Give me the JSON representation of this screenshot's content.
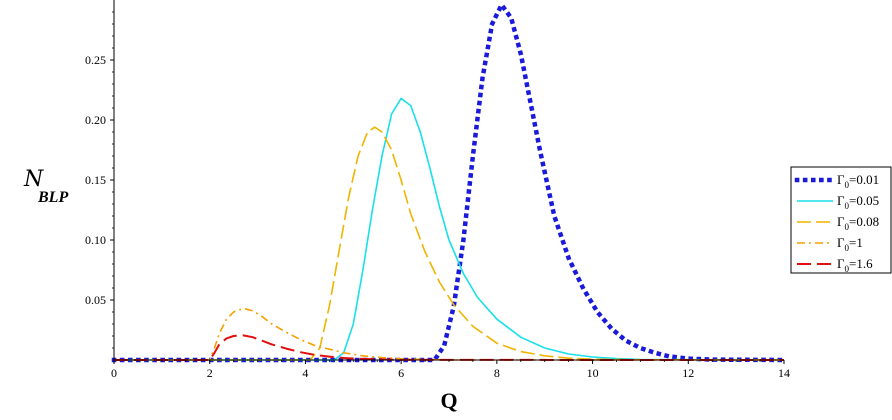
{
  "chart_data": {
    "type": "line",
    "title": "",
    "xlabel": "Q",
    "ylabel": {
      "main": "N",
      "sub": "BLP"
    },
    "xlim": [
      0,
      14
    ],
    "ylim": [
      0,
      0.3
    ],
    "xticks": [
      0,
      2,
      4,
      6,
      8,
      10,
      12,
      14
    ],
    "yticks": [
      0.05,
      0.1,
      0.15,
      0.2,
      0.25
    ],
    "ytick_labels": [
      "0.05",
      "0.10",
      "0.15",
      "0.20",
      "0.25"
    ],
    "xtick_labels": [
      "0",
      "2",
      "4",
      "6",
      "8",
      "10",
      "12",
      "14"
    ],
    "grid": false,
    "legend_position": "right",
    "series": [
      {
        "name": "Γ0=0.01",
        "legend": {
          "symbol": "Γ",
          "sub": "0",
          "value": "=0.01"
        },
        "color": "#1a1adb",
        "style": "dotted",
        "x": [
          0,
          6.7,
          6.9,
          7.1,
          7.3,
          7.5,
          7.7,
          7.9,
          8.1,
          8.3,
          8.5,
          8.7,
          8.9,
          9.2,
          9.5,
          9.8,
          10.1,
          10.4,
          10.7,
          11.0,
          11.3,
          11.6,
          12.0,
          12.5,
          14
        ],
        "y": [
          0,
          0,
          0.012,
          0.045,
          0.1,
          0.17,
          0.235,
          0.28,
          0.296,
          0.285,
          0.255,
          0.215,
          0.175,
          0.12,
          0.085,
          0.06,
          0.04,
          0.026,
          0.016,
          0.01,
          0.006,
          0.003,
          0.0012,
          0.0003,
          0
        ]
      },
      {
        "name": "Γ0=0.05",
        "legend": {
          "symbol": "Γ",
          "sub": "0",
          "value": "=0.05"
        },
        "color": "#18e0e8",
        "style": "solid",
        "x": [
          0,
          4.6,
          4.8,
          5.0,
          5.2,
          5.4,
          5.6,
          5.8,
          6.0,
          6.2,
          6.4,
          6.6,
          6.8,
          7.0,
          7.3,
          7.6,
          8.0,
          8.5,
          9.0,
          9.5,
          10.0,
          10.5,
          11.0,
          14
        ],
        "y": [
          0,
          0,
          0.006,
          0.03,
          0.075,
          0.125,
          0.17,
          0.205,
          0.218,
          0.212,
          0.19,
          0.16,
          0.128,
          0.1,
          0.072,
          0.052,
          0.034,
          0.019,
          0.01,
          0.005,
          0.0025,
          0.0012,
          0.0004,
          0
        ]
      },
      {
        "name": "Γ0=0.08",
        "legend": {
          "symbol": "Γ",
          "sub": "0",
          "value": "=0.08"
        },
        "color": "#f0b400",
        "style": "dashed",
        "x": [
          0,
          4.1,
          4.3,
          4.5,
          4.7,
          4.9,
          5.1,
          5.3,
          5.45,
          5.6,
          5.8,
          6.0,
          6.2,
          6.5,
          6.8,
          7.1,
          7.5,
          8.0,
          8.5,
          9.0,
          9.5,
          10.0,
          11.0,
          14
        ],
        "y": [
          0,
          0,
          0.01,
          0.045,
          0.09,
          0.135,
          0.17,
          0.19,
          0.194,
          0.19,
          0.175,
          0.15,
          0.122,
          0.09,
          0.065,
          0.046,
          0.028,
          0.014,
          0.007,
          0.0035,
          0.0015,
          0.0007,
          0.0002,
          0
        ]
      },
      {
        "name": "Γ0=1",
        "legend": {
          "symbol": "Γ",
          "sub": "0",
          "value": "=1"
        },
        "color": "#f5a000",
        "style": "dashdot",
        "x": [
          0,
          2.0,
          2.1,
          2.2,
          2.35,
          2.5,
          2.7,
          2.9,
          3.1,
          3.3,
          3.6,
          3.9,
          4.2,
          4.5,
          4.8,
          5.2,
          5.6,
          6.0,
          6.5,
          7.0,
          14
        ],
        "y": [
          0,
          0,
          0.01,
          0.022,
          0.034,
          0.04,
          0.043,
          0.041,
          0.036,
          0.03,
          0.023,
          0.017,
          0.012,
          0.009,
          0.006,
          0.0035,
          0.002,
          0.001,
          0.0004,
          0,
          0
        ]
      },
      {
        "name": "Γ0=1.6",
        "legend": {
          "symbol": "Γ",
          "sub": "0",
          "value": "=1.6"
        },
        "color": "#e01010",
        "style": "longdash",
        "x": [
          0,
          2.0,
          2.1,
          2.2,
          2.35,
          2.5,
          2.7,
          2.9,
          3.1,
          3.3,
          3.6,
          3.9,
          4.2,
          4.5,
          4.8,
          5.2,
          5.6,
          6.0,
          14
        ],
        "y": [
          0,
          0,
          0.006,
          0.013,
          0.018,
          0.02,
          0.0205,
          0.019,
          0.016,
          0.013,
          0.0095,
          0.0065,
          0.0042,
          0.0028,
          0.0017,
          0.0009,
          0.0004,
          0.0001,
          0
        ]
      }
    ]
  }
}
